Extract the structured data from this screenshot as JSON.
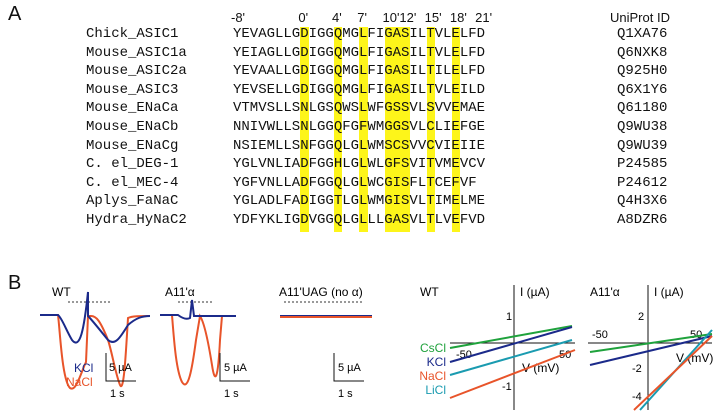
{
  "panel_a": {
    "letter": "A",
    "positions": [
      "-8'",
      "0'",
      "4'",
      "7'",
      "10'",
      "12'",
      "15'",
      "18'",
      "21'"
    ],
    "uniprot_header": "UniProt ID",
    "rows": [
      {
        "name": "Chick_ASIC1",
        "seq": "YEVAGLLGDIGGQMGLFIGASILTVLELFD",
        "id": "Q1XA76"
      },
      {
        "name": "Mouse_ASIC1a",
        "seq": "YEIAGLLGDIGGQMGLFIGASILTVLELFD",
        "id": "Q6NXK8"
      },
      {
        "name": "Mouse_ASIC2a",
        "seq": "YEVAALLGDIGGQMGLFIGASILTILELFD",
        "id": "Q925H0"
      },
      {
        "name": "Mouse_ASIC3",
        "seq": "YEVSELLGDIGGQMGLFIGASILTVLEILD",
        "id": "Q6X1Y6"
      },
      {
        "name": "Mouse_ENaCa",
        "seq": "VTMVSLLSNLGSQWSLWFGSSVLSVVEMAE",
        "id": "Q61180"
      },
      {
        "name": "Mouse_ENaCb",
        "seq": "NNIVWLLSNLGGQFGFWMGGSVLCLIEFGE",
        "id": "Q9WU38"
      },
      {
        "name": "Mouse_ENaCg",
        "seq": "NSIEMLLSNFGGQLGLWMSCSVVCVIEIIE",
        "id": "Q9WU39"
      },
      {
        "name": "C. el_DEG-1",
        "seq": "YGLVNLIADFGGHLGLWLGFSVITVMEVCV",
        "id": "P24585"
      },
      {
        "name": "C. el_MEC-4",
        "seq": "YGFVNLLADFGGQLGLWCGISFLTCEFVF",
        "id": "P24612"
      },
      {
        "name": "Aplys_FaNaC",
        "seq": "YGLADLFADIGGTLGLWMGISVLTIMELME",
        "id": "Q4H3X6"
      },
      {
        "name": "Hydra_HyNaC2",
        "seq": "YDFYKLIGDVGGQLGLLLGASVLTLVEFVD",
        "id": "A8DZR6"
      }
    ]
  },
  "panel_b": {
    "letter": "B",
    "traces": [
      {
        "label": "WT",
        "scale_current": "5 µA",
        "scale_time": "1 s",
        "legend": [
          "KCl",
          "NaCl"
        ]
      },
      {
        "label": "A11'α",
        "scale_current": "5 µA",
        "scale_time": "1 s"
      },
      {
        "label": "A11'UAG (no α)",
        "scale_current": "5 µA",
        "scale_time": "1 s"
      }
    ],
    "iv_plots": [
      {
        "label": "WT",
        "y_axis": "I (µA)",
        "x_axis": "V (mV)",
        "x_ticks": [
          "-50",
          "50"
        ],
        "y_ticks": [
          "1",
          "-1"
        ],
        "legend": [
          "CsCl",
          "KCl",
          "NaCl",
          "LiCl"
        ]
      },
      {
        "label": "A11'α",
        "y_axis": "I (µA)",
        "x_axis": "V (mV)",
        "x_ticks": [
          "-50",
          "50"
        ],
        "y_ticks": [
          "2",
          "-2",
          "-4"
        ]
      }
    ],
    "colors": {
      "kcl": "#1b2a8a",
      "nacl": "#e8542a",
      "cscl": "#1fa23c",
      "licl": "#1a9bb0",
      "highlight": "#fdf51a"
    }
  }
}
